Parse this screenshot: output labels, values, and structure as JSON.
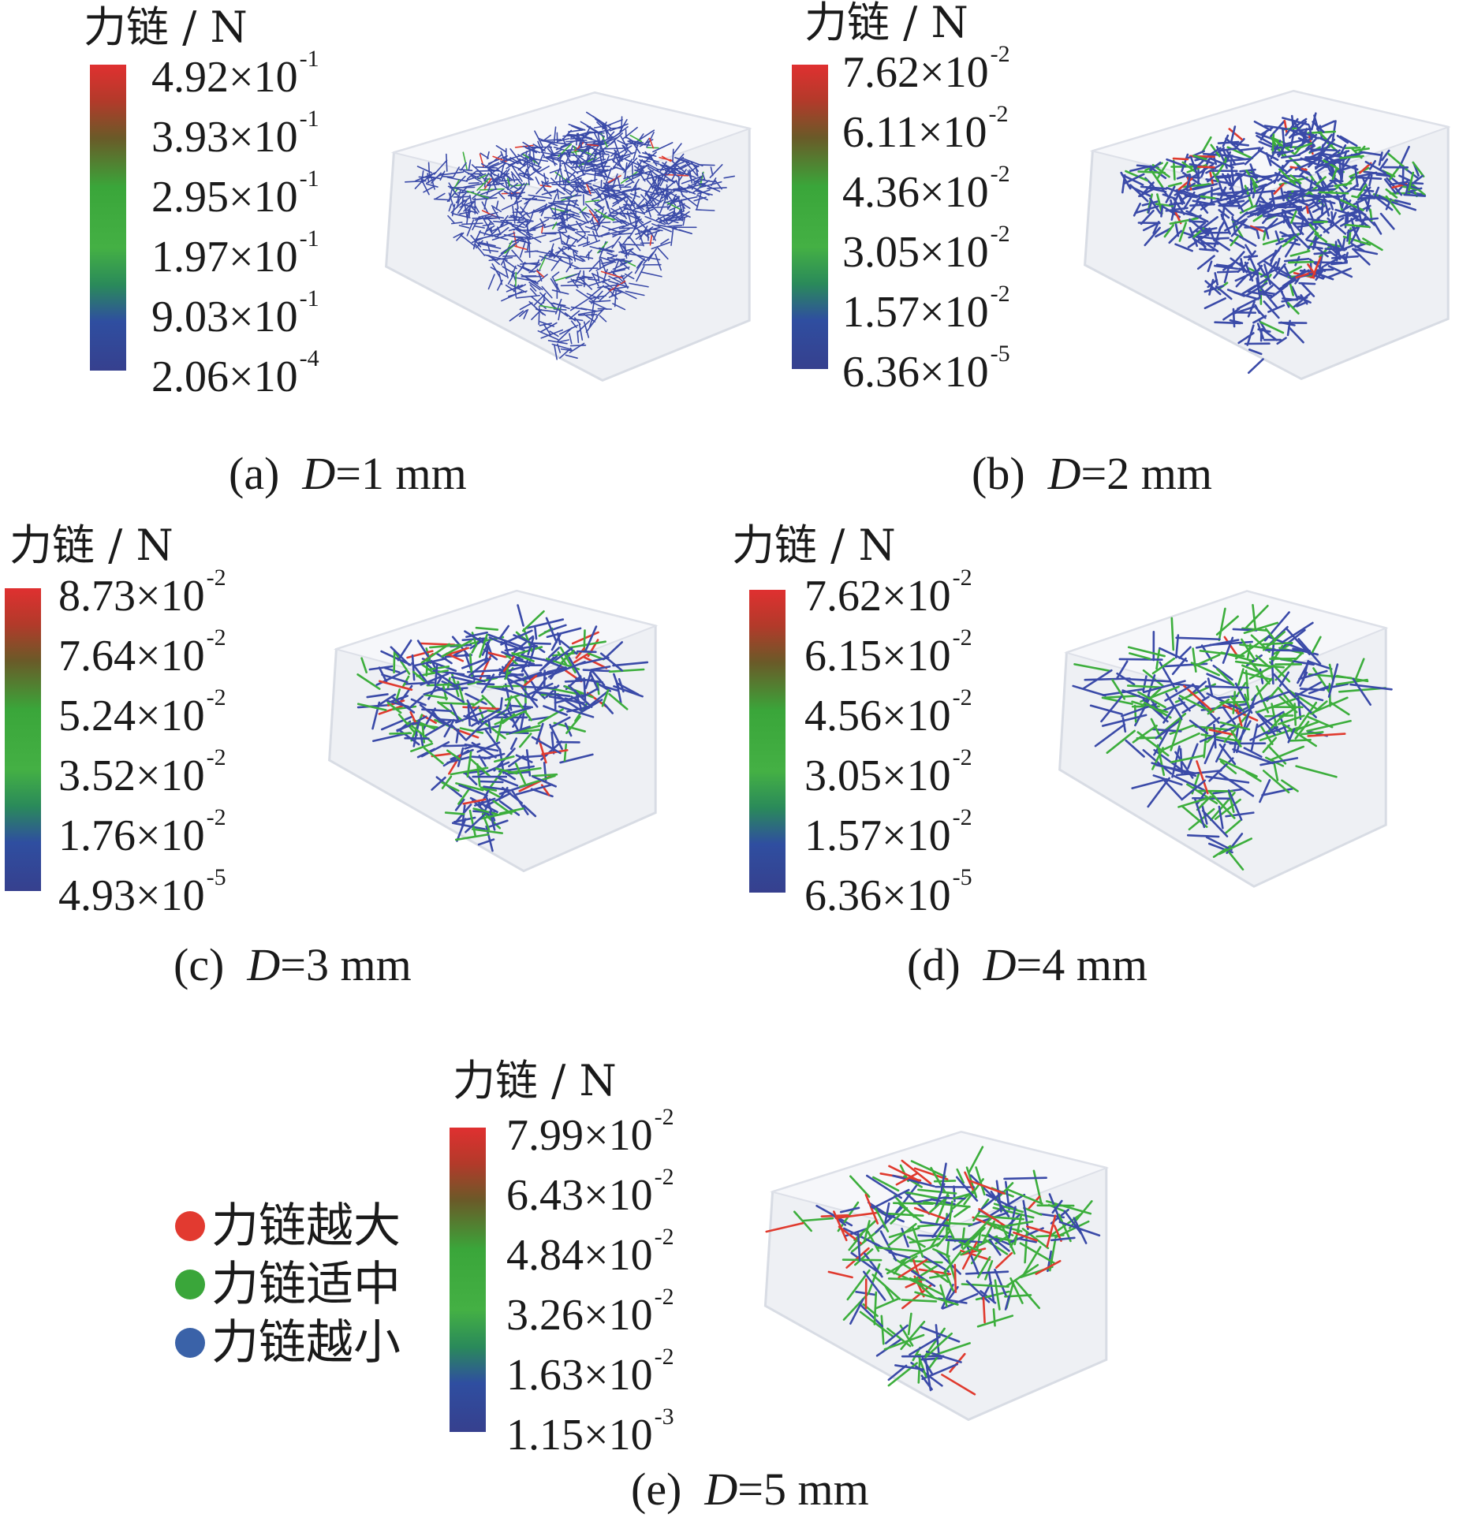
{
  "unit_title": "力链 / N",
  "panels": [
    {
      "id": "a",
      "label": "(a)",
      "var": "D",
      "value": "=1 mm",
      "ticks": [
        [
          "4.92×10",
          "-1"
        ],
        [
          "3.93×10",
          "-1"
        ],
        [
          "2.95×10",
          "-1"
        ],
        [
          "1.97×10",
          "-1"
        ],
        [
          "9.03×10",
          "-1"
        ],
        [
          "2.06×10",
          "-4"
        ]
      ]
    },
    {
      "id": "b",
      "label": "(b)",
      "var": "D",
      "value": "=2 mm",
      "ticks": [
        [
          "7.62×10",
          "-2"
        ],
        [
          "6.11×10",
          "-2"
        ],
        [
          "4.36×10",
          "-2"
        ],
        [
          "3.05×10",
          "-2"
        ],
        [
          "1.57×10",
          "-2"
        ],
        [
          "6.36×10",
          "-5"
        ]
      ]
    },
    {
      "id": "c",
      "label": "(c)",
      "var": "D",
      "value": "=3 mm",
      "ticks": [
        [
          "8.73×10",
          "-2"
        ],
        [
          "7.64×10",
          "-2"
        ],
        [
          "5.24×10",
          "-2"
        ],
        [
          "3.52×10",
          "-2"
        ],
        [
          "1.76×10",
          "-2"
        ],
        [
          "4.93×10",
          "-5"
        ]
      ]
    },
    {
      "id": "d",
      "label": "(d)",
      "var": "D",
      "value": "=4 mm",
      "ticks": [
        [
          "7.62×10",
          "-2"
        ],
        [
          "6.15×10",
          "-2"
        ],
        [
          "4.56×10",
          "-2"
        ],
        [
          "3.05×10",
          "-2"
        ],
        [
          "1.57×10",
          "-2"
        ],
        [
          "6.36×10",
          "-5"
        ]
      ]
    },
    {
      "id": "e",
      "label": "(e)",
      "var": "D",
      "value": "=5 mm",
      "ticks": [
        [
          "7.99×10",
          "-2"
        ],
        [
          "6.43×10",
          "-2"
        ],
        [
          "4.84×10",
          "-2"
        ],
        [
          "3.26×10",
          "-2"
        ],
        [
          "1.63×10",
          "-2"
        ],
        [
          "1.15×10",
          "-3"
        ]
      ]
    }
  ],
  "legend": [
    {
      "label": "力链越大",
      "color": "#e23a30"
    },
    {
      "label": "力链适中",
      "color": "#3aa63a"
    },
    {
      "label": "力链越小",
      "color": "#3a62a8"
    }
  ]
}
